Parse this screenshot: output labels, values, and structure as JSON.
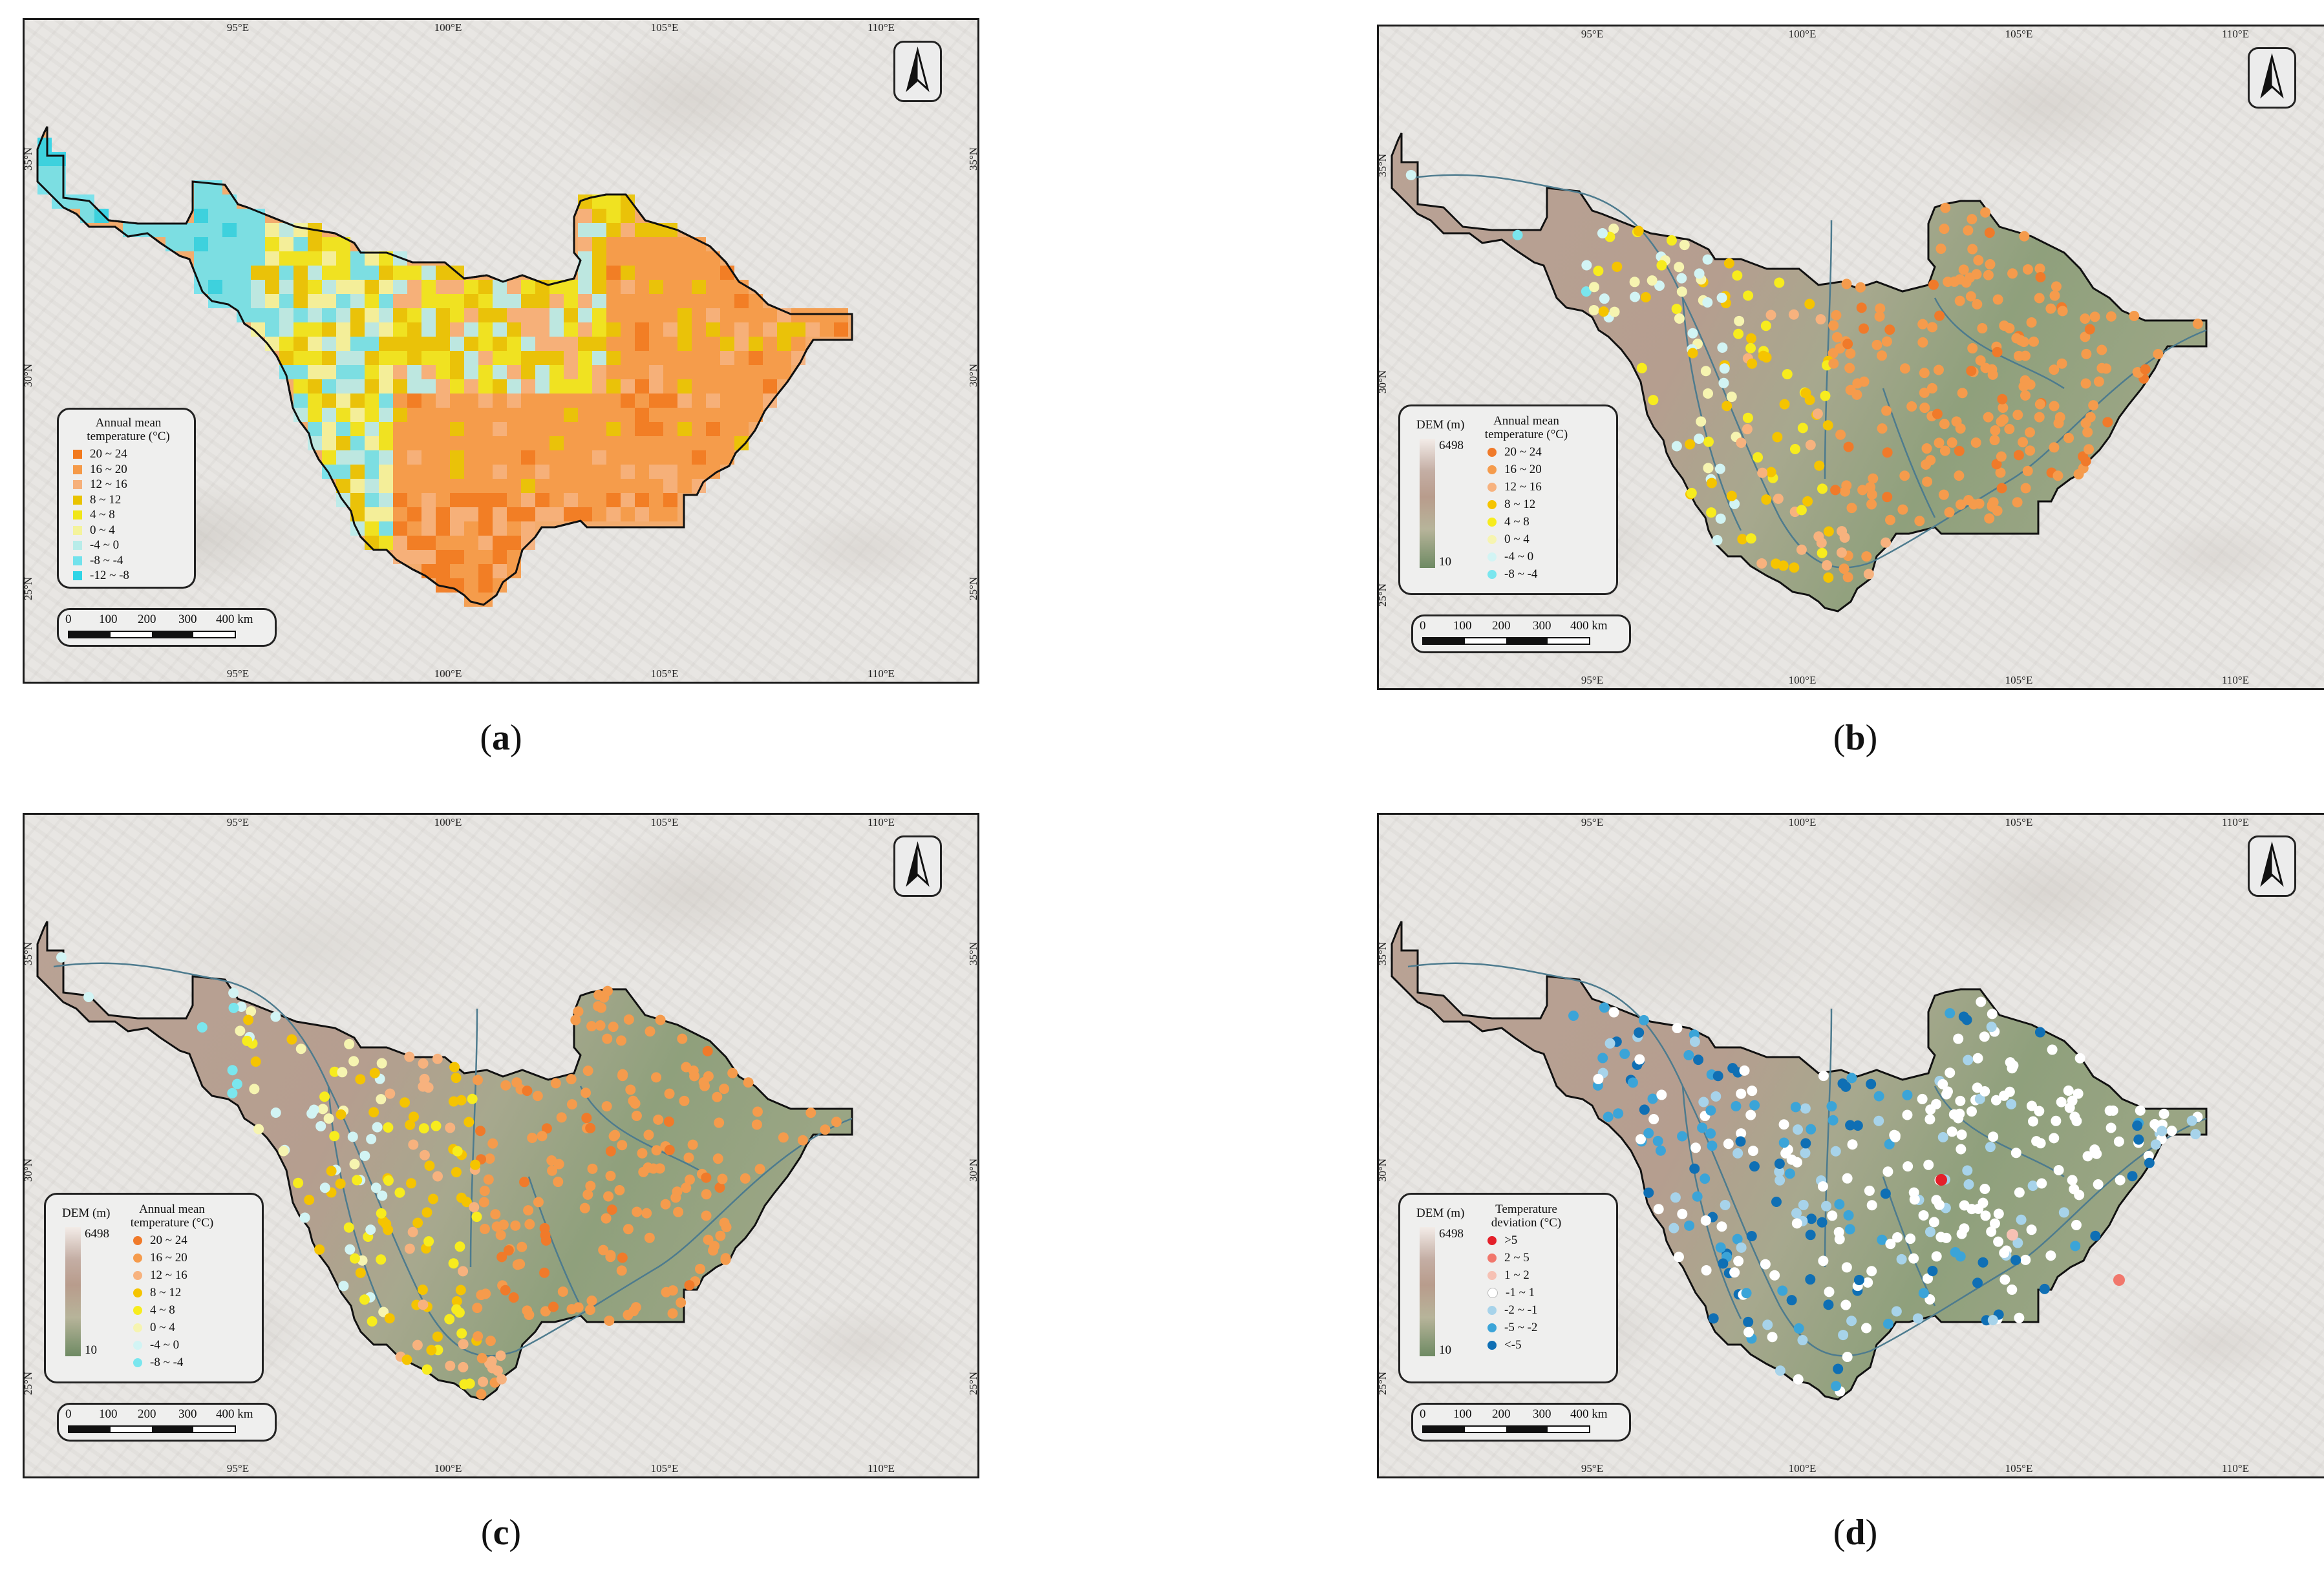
{
  "panels": [
    {
      "id": "a",
      "caption_letter": "a",
      "mode": "grid",
      "legend_title": "Annual mean temperature (°C)",
      "legend_items": [
        {
          "label": "20 ~ 24",
          "color": "#f27a1e"
        },
        {
          "label": "16 ~ 20",
          "color": "#f59a48"
        },
        {
          "label": "12 ~ 16",
          "color": "#f6b07a"
        },
        {
          "label": "8 ~ 12",
          "color": "#e9c300"
        },
        {
          "label": "4 ~ 8",
          "color": "#f0e61a"
        },
        {
          "label": "0 ~ 4",
          "color": "#f4f39c"
        },
        {
          "label": "-4 ~ 0",
          "color": "#b8ece9"
        },
        {
          "label": "-8 ~ -4",
          "color": "#72e2ec"
        },
        {
          "label": "-12 ~ -8",
          "color": "#2fd4e6"
        }
      ]
    },
    {
      "id": "b",
      "caption_letter": "b",
      "mode": "stations",
      "dem_title": "DEM (m)",
      "dem_max": "6498",
      "dem_min": "10",
      "legend_title": "Annual mean temperature (°C)",
      "legend_items": [
        {
          "label": "20 ~ 24",
          "color": "#f07a2a"
        },
        {
          "label": "16 ~ 20",
          "color": "#f59b4c"
        },
        {
          "label": "12 ~ 16",
          "color": "#f7b27e"
        },
        {
          "label": "8 ~ 12",
          "color": "#f5c400"
        },
        {
          "label": "4 ~ 8",
          "color": "#f7ec1e"
        },
        {
          "label": "0 ~ 4",
          "color": "#f6f4b0"
        },
        {
          "label": "-4 ~ 0",
          "color": "#d2f4f4"
        },
        {
          "label": "-8 ~ -4",
          "color": "#7ae6ee"
        }
      ]
    },
    {
      "id": "c",
      "caption_letter": "c",
      "mode": "stations",
      "dem_title": "DEM (m)",
      "dem_max": "6498",
      "dem_min": "10",
      "legend_title": "Annual mean temperature (°C)",
      "legend_items": [
        {
          "label": "20 ~ 24",
          "color": "#f07a2a"
        },
        {
          "label": "16 ~ 20",
          "color": "#f59b4c"
        },
        {
          "label": "12 ~ 16",
          "color": "#f7b27e"
        },
        {
          "label": "8 ~ 12",
          "color": "#f5c400"
        },
        {
          "label": "4 ~ 8",
          "color": "#f7ec1e"
        },
        {
          "label": "0 ~ 4",
          "color": "#f6f4b0"
        },
        {
          "label": "-4 ~ 0",
          "color": "#d2f4f4"
        },
        {
          "label": "-8 ~ -4",
          "color": "#7ae6ee"
        }
      ]
    },
    {
      "id": "d",
      "caption_letter": "d",
      "mode": "deviation",
      "dem_title": "DEM (m)",
      "dem_max": "6498",
      "dem_min": "10",
      "legend_title": "Temperature deviation (°C)",
      "legend_items": [
        {
          "label": ">5",
          "color": "#e4202a"
        },
        {
          "label": "2 ~ 5",
          "color": "#f1776c"
        },
        {
          "label": "1 ~ 2",
          "color": "#f6c1b4"
        },
        {
          "label": "-1 ~ 1",
          "color": "#ffffff"
        },
        {
          "label": "-2 ~ -1",
          "color": "#a7d3ea"
        },
        {
          "label": "-5 ~ -2",
          "color": "#3ba4d8"
        },
        {
          "label": "<-5",
          "color": "#0f6fb4"
        }
      ]
    }
  ],
  "lon_labels": [
    "95°E",
    "100°E",
    "105°E",
    "110°E"
  ],
  "lat_labels": [
    "35°N",
    "30°N",
    "25°N"
  ],
  "scale_labels": [
    "0",
    "100",
    "200",
    "300",
    "400 km"
  ]
}
